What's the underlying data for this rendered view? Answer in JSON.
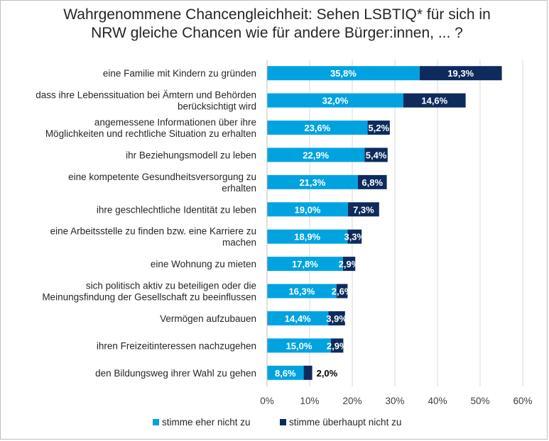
{
  "colors": {
    "series1": "#00a3e0",
    "series2": "#0d2b5c",
    "grid": "#d9d9d9"
  },
  "chart_data": {
    "type": "bar",
    "orientation": "horizontal",
    "stacked": true,
    "title": "Wahrgenommene Chancengleichheit: Sehen LSBTIQ* für sich in NRW gleiche Chancen wie für andere Bürger:innen, ... ?",
    "title_lines": [
      "Wahrgenommene Chancengleichheit: Sehen LSBTIQ* für sich in",
      "NRW gleiche Chancen wie für andere Bürger:innen, ... ?"
    ],
    "categories": [
      "eine Familie mit Kindern zu gründen",
      "dass ihre Lebenssituation bei Ämtern und Behörden berücksichtigt wird",
      "angemessene Informationen über ihre Möglichkeiten und rechtliche Situation zu erhalten",
      "ihr Beziehungsmodell zu leben",
      "eine kompetente Gesundheitsversorgung zu erhalten",
      "ihre geschlechtliche Identität zu leben",
      "eine Arbeitsstelle zu finden bzw. eine Karriere zu machen",
      "eine Wohnung zu mieten",
      "sich politisch aktiv zu beteiligen oder die Meinungsfindung der Gesellschaft zu beeinflussen",
      "Vermögen aufzubauen",
      "ihren Freizeitinteressen nachzugehen",
      "den Bildungsweg ihrer Wahl zu gehen"
    ],
    "category_lines": [
      [
        "eine Familie mit Kindern zu gründen"
      ],
      [
        "dass ihre Lebenssituation bei Ämtern und Behörden",
        "berücksichtigt wird"
      ],
      [
        "angemessene Informationen über ihre",
        "Möglichkeiten und rechtliche Situation zu erhalten"
      ],
      [
        "ihr Beziehungsmodell zu leben"
      ],
      [
        "eine kompetente Gesundheitsversorgung zu",
        "erhalten"
      ],
      [
        "ihre geschlechtliche Identität zu leben"
      ],
      [
        "eine Arbeitsstelle zu finden bzw. eine Karriere zu",
        "machen"
      ],
      [
        "eine Wohnung zu mieten"
      ],
      [
        "sich politisch aktiv zu beteiligen oder die",
        "Meinungsfindung der Gesellschaft zu beeinflussen"
      ],
      [
        "Vermögen aufzubauen"
      ],
      [
        "ihren Freizeitinteressen nachzugehen"
      ],
      [
        "den Bildungsweg ihrer Wahl zu gehen"
      ]
    ],
    "series": [
      {
        "name": "stimme eher nicht zu",
        "values": [
          35.8,
          32.0,
          23.6,
          22.9,
          21.3,
          19.0,
          18.9,
          17.8,
          16.3,
          14.4,
          15.0,
          8.6
        ],
        "labels": [
          "35,8%",
          "32,0%",
          "23,6%",
          "22,9%",
          "21,3%",
          "19,0%",
          "18,9%",
          "17,8%",
          "16,3%",
          "14,4%",
          "15,0%",
          "8,6%"
        ]
      },
      {
        "name": "stimme überhaupt nicht zu",
        "values": [
          19.3,
          14.6,
          5.2,
          5.4,
          6.8,
          7.3,
          3.3,
          2.9,
          2.6,
          3.9,
          2.9,
          2.0
        ],
        "labels": [
          "19,3%",
          "14,6%",
          "5,2%",
          "5,4%",
          "6,8%",
          "7,3%",
          "3,3%",
          "2,9%",
          "2,6%",
          "3,9%",
          "2,9%",
          "2,0%"
        ]
      }
    ],
    "xlim": [
      0,
      60
    ],
    "xticks": [
      0,
      10,
      20,
      30,
      40,
      50,
      60
    ],
    "xtick_labels": [
      "0%",
      "10%",
      "20%",
      "30%",
      "40%",
      "50%",
      "60%"
    ],
    "grid": true,
    "legend_position": "bottom"
  }
}
